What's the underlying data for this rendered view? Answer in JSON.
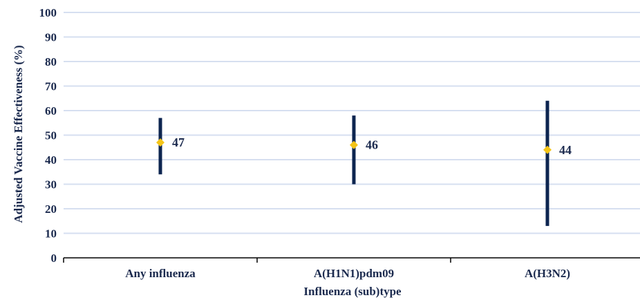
{
  "chart_data": {
    "type": "scatter",
    "xlabel": "Influenza (sub)type",
    "ylabel": "Adjusted Vaccine Effectiveness (%)",
    "ylim": [
      0,
      100
    ],
    "yticks": [
      0,
      10,
      20,
      30,
      40,
      50,
      60,
      70,
      80,
      90,
      100
    ],
    "grid": true,
    "categories": [
      "Any influenza",
      "A(H1N1)pdm09",
      "A(H3N2)"
    ],
    "values": [
      47,
      46,
      44
    ],
    "lower": [
      34,
      30,
      13
    ],
    "upper": [
      57,
      58,
      64
    ],
    "data_labels": [
      "47",
      "46",
      "44"
    ],
    "colors": {
      "errorbar": "#0d2550",
      "marker": "#f5c518",
      "grid": "#d6dff0",
      "text": "#1b2a4e"
    }
  }
}
